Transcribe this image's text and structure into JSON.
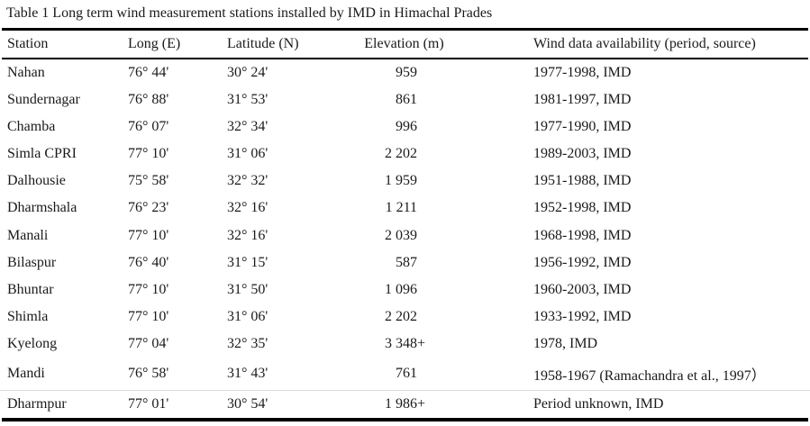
{
  "caption": "Table 1 Long term wind measurement stations installed by IMD in Himachal Prades",
  "table": {
    "columns": [
      "Station",
      "Long (E)",
      "Latitude (N)",
      "Elevation (m)",
      "Wind data availability (period, source)"
    ],
    "rows": [
      {
        "station": "Nahan",
        "long": "76° 44'",
        "lat": "30° 24'",
        "elevation": "959",
        "elevation_suffix": "",
        "availability": "1977-1998, IMD"
      },
      {
        "station": "Sundernagar",
        "long": "76° 88'",
        "lat": "31° 53'",
        "elevation": "861",
        "elevation_suffix": "",
        "availability": "1981-1997, IMD"
      },
      {
        "station": "Chamba",
        "long": "76° 07'",
        "lat": "32° 34'",
        "elevation": "996",
        "elevation_suffix": "",
        "availability": "1977-1990, IMD"
      },
      {
        "station": "Simla CPRI",
        "long": "77° 10'",
        "lat": "31° 06'",
        "elevation": "2 202",
        "elevation_suffix": "",
        "availability": "1989-2003, IMD"
      },
      {
        "station": "Dalhousie",
        "long": "75° 58'",
        "lat": "32° 32'",
        "elevation": "1 959",
        "elevation_suffix": "",
        "availability": "1951-1988, IMD"
      },
      {
        "station": "Dharmshala",
        "long": "76° 23'",
        "lat": "32° 16'",
        "elevation": "1 211",
        "elevation_suffix": "",
        "availability": "1952-1998, IMD"
      },
      {
        "station": "Manali",
        "long": "77° 10'",
        "lat": "32° 16'",
        "elevation": "2 039",
        "elevation_suffix": "",
        "availability": "1968-1998, IMD"
      },
      {
        "station": "Bilaspur",
        "long": "76° 40'",
        "lat": "31° 15'",
        "elevation": "587",
        "elevation_suffix": "",
        "availability": "1956-1992, IMD"
      },
      {
        "station": "Bhuntar",
        "long": "77° 10'",
        "lat": "31° 50'",
        "elevation": "1 096",
        "elevation_suffix": "",
        "availability": "1960-2003, IMD"
      },
      {
        "station": "Shimla",
        "long": "77° 10'",
        "lat": "31° 06'",
        "elevation": "2 202",
        "elevation_suffix": "",
        "availability": "1933-1992, IMD"
      },
      {
        "station": "Kyelong",
        "long": "77° 04'",
        "lat": "32° 35'",
        "elevation": "3 348",
        "elevation_suffix": "+",
        "availability": "1978, IMD"
      },
      {
        "station": "Mandi",
        "long": "76° 58'",
        "lat": "31° 43'",
        "elevation": "761",
        "elevation_suffix": "",
        "availability": "1958-1967 (Ramachandra et al., 1997）"
      },
      {
        "station": "Dharmpur",
        "long": "77° 01'",
        "lat": "30° 54'",
        "elevation": "1 986",
        "elevation_suffix": "+",
        "availability": "Period unknown, IMD"
      }
    ]
  }
}
